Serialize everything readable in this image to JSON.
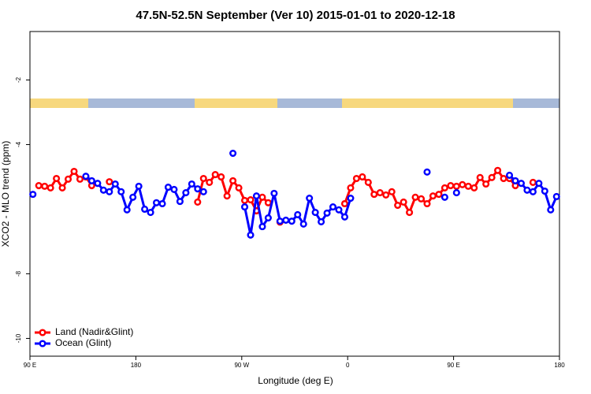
{
  "chart_data": {
    "type": "line",
    "title": "47.5N-52.5N September (Ver 10)   2015-01-01 to 2020-12-18",
    "x_label": "Longitude (deg E)",
    "y_label": "XCO2 - MLO trend (ppm)",
    "xlim": [
      90,
      540
    ],
    "ylim": [
      -10.55,
      -0.5
    ],
    "xticks": [
      {
        "value": 90,
        "label": "90 E"
      },
      180,
      {
        "value": 270,
        "label": "90 W"
      },
      {
        "value": 360,
        "label": "0"
      },
      {
        "value": 450,
        "label": "90 E"
      },
      {
        "value": 540,
        "label": "180"
      }
    ],
    "yticks": [
      -2,
      -4,
      -8,
      -10
    ],
    "legend": "bottom-left",
    "x": [
      92.5,
      97.5,
      102.5,
      107.5,
      112.5,
      117.5,
      122.5,
      127.5,
      132.5,
      137.5,
      142.5,
      147.5,
      152.5,
      157.5,
      162.5,
      167.5,
      172.5,
      177.5,
      182.5,
      187.5,
      192.5,
      197.5,
      202.5,
      207.5,
      212.5,
      217.5,
      222.5,
      227.5,
      232.5,
      237.5,
      242.5,
      247.5,
      252.5,
      257.5,
      262.5,
      267.5,
      272.5,
      277.5,
      282.5,
      287.5,
      292.5,
      297.5,
      302.5,
      307.5,
      312.5,
      317.5,
      322.5,
      327.5,
      332.5,
      337.5,
      342.5,
      347.5,
      352.5,
      357.5,
      362.5,
      367.5,
      372.5,
      377.5,
      382.5,
      387.5,
      392.5,
      397.5,
      402.5,
      407.5,
      412.5,
      417.5,
      422.5,
      427.5,
      432.5,
      437.5,
      442.5,
      447.5,
      452.5,
      457.5,
      462.5,
      467.5,
      472.5,
      477.5,
      482.5,
      487.5,
      492.5,
      497.5,
      502.5,
      507.5,
      512.5,
      517.5,
      522.5,
      527.5,
      532.5,
      537.5
    ],
    "series": [
      {
        "name": "Land (Nadir&Glint)",
        "color": "#ff0000",
        "values": [
          null,
          -5.27,
          -5.29,
          -5.34,
          -5.05,
          -5.34,
          -5.07,
          -4.83,
          -5.07,
          -5.0,
          -5.27,
          null,
          null,
          -5.15,
          null,
          null,
          null,
          null,
          null,
          null,
          null,
          null,
          null,
          null,
          null,
          null,
          null,
          null,
          -5.78,
          -5.05,
          -5.17,
          -4.93,
          -5.0,
          -5.59,
          -5.12,
          -5.34,
          -5.73,
          -5.71,
          -6.05,
          -5.63,
          -5.8,
          null,
          -6.4,
          null,
          null,
          null,
          null,
          null,
          null,
          null,
          null,
          null,
          null,
          -5.83,
          -5.34,
          -5.05,
          -5.0,
          -5.17,
          -5.54,
          -5.49,
          -5.56,
          -5.46,
          -5.88,
          -5.78,
          -6.1,
          -5.63,
          -5.68,
          -5.83,
          -5.59,
          -5.54,
          -5.34,
          -5.27,
          -5.29,
          -5.24,
          -5.29,
          -5.34,
          -5.02,
          -5.22,
          -5.02,
          -4.8,
          -5.05,
          -5.05,
          -5.27,
          null,
          null,
          -5.17,
          null,
          null,
          null,
          null
        ]
      },
      {
        "name": "Ocean (Glint)",
        "color": "#0000ff",
        "values": [
          -5.54,
          null,
          null,
          null,
          null,
          null,
          null,
          null,
          null,
          -4.98,
          -5.12,
          -5.2,
          -5.41,
          -5.46,
          -5.22,
          -5.46,
          -6.02,
          -5.63,
          -5.29,
          -6.0,
          -6.1,
          -5.8,
          -5.83,
          -5.32,
          -5.39,
          -5.76,
          -5.49,
          -5.22,
          -5.37,
          -5.46,
          null,
          null,
          null,
          null,
          -4.27,
          null,
          -5.93,
          -6.8,
          -5.59,
          -6.54,
          -6.27,
          -5.51,
          -6.37,
          -6.34,
          -6.37,
          -6.17,
          -6.46,
          -5.66,
          -6.1,
          -6.39,
          -6.12,
          -5.93,
          -6.02,
          -6.24,
          -5.66,
          null,
          null,
          null,
          null,
          null,
          null,
          null,
          null,
          null,
          null,
          null,
          null,
          -4.85,
          null,
          null,
          -5.63,
          null,
          -5.49,
          null,
          null,
          null,
          null,
          null,
          null,
          null,
          null,
          -4.95,
          -5.12,
          -5.2,
          -5.41,
          -5.46,
          -5.2,
          -5.44,
          -6.02,
          -5.61
        ]
      }
    ]
  }
}
